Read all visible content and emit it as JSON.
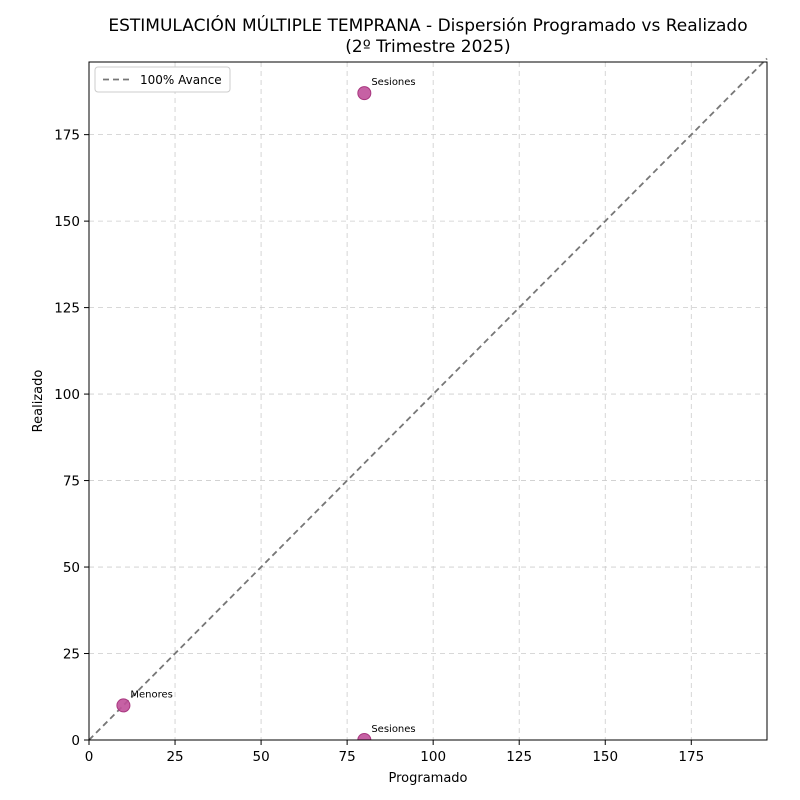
{
  "chart_data": {
    "type": "scatter",
    "title": "ESTIMULACIÓN MÚLTIPLE TEMPRANA - Dispersión Programado vs Realizado",
    "subtitle": "(2º Trimestre 2025)",
    "xlabel": "Programado",
    "ylabel": "Realizado",
    "xlim": [
      0,
      197
    ],
    "ylim": [
      0,
      196
    ],
    "xticks": [
      0,
      25,
      50,
      75,
      100,
      125,
      150,
      175
    ],
    "yticks": [
      0,
      25,
      50,
      75,
      100,
      125,
      150,
      175
    ],
    "grid": true,
    "legend": {
      "position": "upper left",
      "entries": [
        "100% Avance"
      ]
    },
    "reference_line": {
      "label": "100% Avance",
      "style": "dashed",
      "color": "#777777",
      "from": [
        0,
        0
      ],
      "to": [
        197,
        197
      ]
    },
    "points": [
      {
        "label": "Sesiones",
        "x": 80,
        "y": 187
      },
      {
        "label": "Menores",
        "x": 10,
        "y": 10
      },
      {
        "label": "Sesiones",
        "x": 80,
        "y": 0
      }
    ],
    "colors": {
      "marker_fill": "#c0509a",
      "marker_edge": "#a8377f",
      "grid": "#cccccc",
      "reference": "#777777"
    }
  }
}
